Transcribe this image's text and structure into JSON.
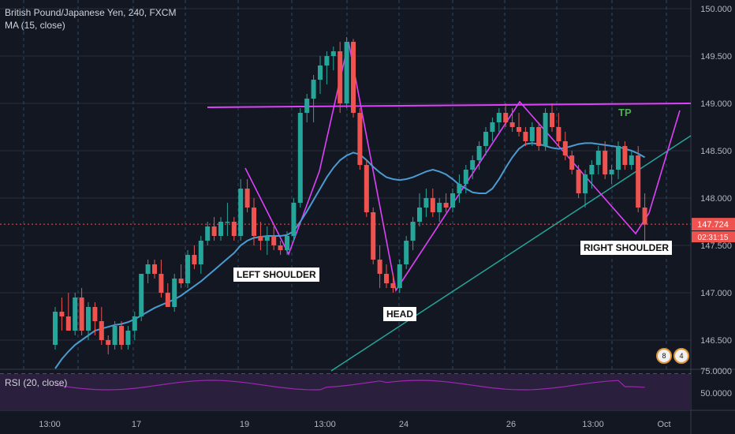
{
  "header": {
    "symbol_line": "British Pound/Japanese Yen, 240, FXCM",
    "ma_line": "MA (15, close)"
  },
  "rsi": {
    "label": "RSI (20, close)",
    "overbought": "75.0000",
    "mid": "50.0000"
  },
  "price_tags": {
    "last": "147.724",
    "countdown": "02:31:15"
  },
  "annotations": {
    "left_shoulder": "LEFT SHOULDER",
    "head": "HEAD",
    "right_shoulder": "RIGHT SHOULDER",
    "tp": "TP"
  },
  "badges": {
    "a": "8",
    "b": "4"
  },
  "colors": {
    "background": "#131722",
    "up": "#26a69a",
    "down": "#ef5350",
    "ma": "#4a9bd1",
    "pattern": "#e040fb",
    "neckline": "#e040fb",
    "trendline": "#26a69a",
    "rsi_band": "#2a1f3d",
    "rsi_line": "#9c27b0"
  },
  "chart_data": {
    "type": "candlestick",
    "title": "British Pound/Japanese Yen, 240, FXCM",
    "indicator": "MA (15, close)",
    "y_ticks": [
      "150.000",
      "149.500",
      "149.000",
      "148.500",
      "148.000",
      "147.500",
      "147.000",
      "146.500"
    ],
    "ylim": [
      146.3,
      150.1
    ],
    "x_ticks": [
      "13:00",
      "17",
      "13:00",
      "19",
      "13:00",
      "24",
      "26",
      "13:00",
      "Oct"
    ],
    "candles": [
      [
        146.45,
        146.85,
        146.4,
        146.8
      ],
      [
        146.8,
        146.95,
        146.6,
        146.75
      ],
      [
        146.75,
        147.0,
        146.6,
        146.6
      ],
      [
        146.6,
        147.0,
        146.55,
        146.95
      ],
      [
        146.95,
        147.05,
        146.55,
        146.6
      ],
      [
        146.6,
        146.9,
        146.5,
        146.85
      ],
      [
        146.85,
        146.9,
        146.55,
        146.7
      ],
      [
        146.7,
        146.85,
        146.45,
        146.5
      ],
      [
        146.5,
        146.55,
        146.35,
        146.45
      ],
      [
        146.45,
        146.7,
        146.4,
        146.65
      ],
      [
        146.65,
        146.7,
        146.4,
        146.45
      ],
      [
        146.45,
        146.65,
        146.4,
        146.6
      ],
      [
        146.6,
        146.8,
        146.5,
        146.75
      ],
      [
        146.75,
        147.2,
        146.7,
        147.2
      ],
      [
        147.2,
        147.35,
        147.1,
        147.3
      ],
      [
        147.3,
        147.35,
        147.15,
        147.2
      ],
      [
        147.2,
        147.35,
        146.95,
        147.0
      ],
      [
        147.0,
        147.1,
        146.85,
        146.85
      ],
      [
        146.85,
        147.2,
        146.8,
        147.15
      ],
      [
        147.15,
        147.3,
        147.05,
        147.1
      ],
      [
        147.1,
        147.45,
        147.05,
        147.4
      ],
      [
        147.4,
        147.5,
        147.25,
        147.3
      ],
      [
        147.3,
        147.6,
        147.2,
        147.55
      ],
      [
        147.55,
        147.75,
        147.5,
        147.7
      ],
      [
        147.7,
        147.8,
        147.55,
        147.6
      ],
      [
        147.6,
        147.8,
        147.55,
        147.75
      ],
      [
        147.75,
        147.95,
        147.6,
        147.75
      ],
      [
        147.75,
        147.8,
        147.55,
        147.6
      ],
      [
        147.6,
        148.2,
        147.55,
        148.1
      ],
      [
        148.1,
        148.2,
        147.85,
        147.9
      ],
      [
        147.9,
        148.0,
        147.5,
        147.6
      ],
      [
        147.6,
        147.75,
        147.45,
        147.55
      ],
      [
        147.55,
        147.7,
        147.4,
        147.6
      ],
      [
        147.6,
        147.7,
        147.45,
        147.5
      ],
      [
        147.5,
        147.55,
        147.4,
        147.45
      ],
      [
        147.45,
        147.65,
        147.4,
        147.6
      ],
      [
        147.6,
        148.0,
        147.55,
        147.95
      ],
      [
        147.95,
        148.95,
        147.9,
        148.9
      ],
      [
        148.9,
        149.1,
        148.8,
        149.05
      ],
      [
        149.05,
        149.3,
        148.8,
        149.25
      ],
      [
        149.25,
        149.5,
        149.1,
        149.4
      ],
      [
        149.4,
        149.55,
        149.2,
        149.5
      ],
      [
        149.5,
        149.6,
        149.35,
        149.55
      ],
      [
        149.55,
        149.65,
        148.9,
        149.0
      ],
      [
        149.0,
        149.7,
        148.95,
        149.65
      ],
      [
        149.65,
        149.68,
        148.85,
        148.9
      ],
      [
        148.9,
        148.95,
        148.3,
        148.35
      ],
      [
        148.35,
        148.4,
        147.8,
        147.85
      ],
      [
        147.85,
        147.9,
        147.3,
        147.35
      ],
      [
        147.35,
        147.5,
        147.05,
        147.2
      ],
      [
        147.2,
        147.3,
        147.05,
        147.1
      ],
      [
        147.1,
        147.2,
        147.0,
        147.05
      ],
      [
        147.05,
        147.35,
        147.0,
        147.3
      ],
      [
        147.3,
        147.6,
        147.25,
        147.55
      ],
      [
        147.55,
        147.8,
        147.45,
        147.75
      ],
      [
        147.75,
        148.05,
        147.7,
        147.9
      ],
      [
        147.9,
        148.1,
        147.8,
        148.0
      ],
      [
        148.0,
        148.1,
        147.8,
        147.85
      ],
      [
        147.85,
        148.0,
        147.75,
        147.95
      ],
      [
        147.95,
        148.05,
        147.85,
        147.9
      ],
      [
        147.9,
        148.1,
        147.85,
        148.05
      ],
      [
        148.05,
        148.25,
        147.95,
        148.15
      ],
      [
        148.15,
        148.35,
        148.05,
        148.3
      ],
      [
        148.3,
        148.45,
        148.2,
        148.4
      ],
      [
        148.4,
        148.6,
        148.3,
        148.55
      ],
      [
        148.55,
        148.75,
        148.45,
        148.7
      ],
      [
        148.7,
        148.85,
        148.6,
        148.8
      ],
      [
        148.8,
        148.95,
        148.7,
        148.9
      ],
      [
        148.9,
        149.0,
        148.75,
        148.8
      ],
      [
        148.8,
        148.95,
        148.7,
        148.75
      ],
      [
        148.75,
        148.9,
        148.65,
        148.7
      ],
      [
        148.7,
        148.75,
        148.55,
        148.6
      ],
      [
        148.6,
        148.8,
        148.55,
        148.75
      ],
      [
        148.75,
        148.8,
        148.5,
        148.55
      ],
      [
        148.55,
        148.95,
        148.5,
        148.9
      ],
      [
        148.9,
        149.0,
        148.7,
        148.75
      ],
      [
        148.75,
        148.9,
        148.55,
        148.6
      ],
      [
        148.6,
        148.7,
        148.4,
        148.45
      ],
      [
        148.45,
        148.5,
        148.25,
        148.3
      ],
      [
        148.3,
        148.35,
        148.0,
        148.05
      ],
      [
        148.05,
        148.3,
        147.9,
        148.25
      ],
      [
        148.25,
        148.4,
        148.1,
        148.35
      ],
      [
        148.35,
        148.55,
        148.25,
        148.5
      ],
      [
        148.5,
        148.6,
        148.2,
        148.25
      ],
      [
        148.25,
        148.35,
        148.15,
        148.3
      ],
      [
        148.3,
        148.6,
        148.2,
        148.55
      ],
      [
        148.55,
        148.6,
        148.3,
        148.35
      ],
      [
        148.35,
        148.5,
        148.3,
        148.45
      ],
      [
        148.45,
        148.55,
        147.85,
        147.9
      ],
      [
        147.9,
        148.05,
        147.55,
        147.72
      ]
    ],
    "ma_line": [
      146.2,
      146.3,
      146.38,
      146.45,
      146.5,
      146.55,
      146.6,
      146.62,
      146.64,
      146.66,
      146.67,
      146.69,
      146.72,
      146.76,
      146.8,
      146.84,
      146.87,
      146.9,
      146.93,
      146.97,
      147.02,
      147.07,
      147.12,
      147.18,
      147.24,
      147.3,
      147.36,
      147.42,
      147.5,
      147.55,
      147.58,
      147.59,
      147.6,
      147.6,
      147.6,
      147.61,
      147.65,
      147.75,
      147.86,
      147.98,
      148.1,
      148.22,
      148.32,
      148.4,
      148.45,
      148.48,
      148.46,
      148.4,
      148.33,
      148.27,
      148.22,
      148.2,
      148.19,
      148.2,
      148.22,
      148.25,
      148.28,
      148.3,
      148.28,
      148.25,
      148.2,
      148.14,
      148.1,
      148.06,
      148.05,
      148.05,
      148.1,
      148.2,
      148.32,
      148.43,
      148.52,
      148.57,
      148.58,
      148.57,
      148.55,
      148.53,
      148.52,
      148.53,
      148.55,
      148.57,
      148.58,
      148.58,
      148.57,
      148.56,
      148.55,
      148.54,
      148.52,
      148.5,
      148.47,
      148.43
    ]
  }
}
